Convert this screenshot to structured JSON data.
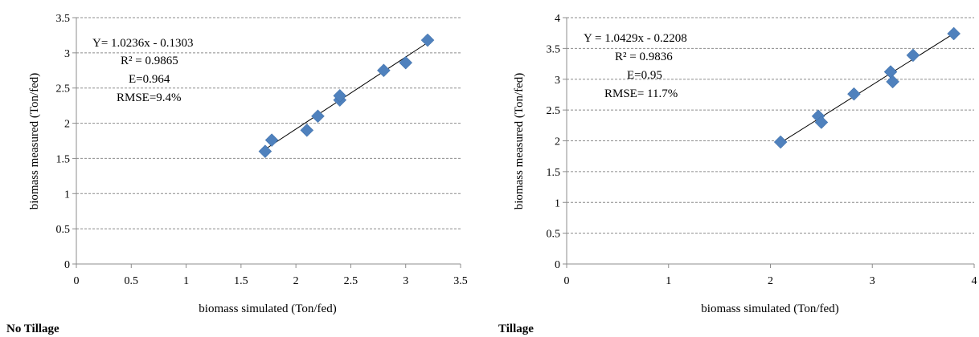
{
  "chart_data": [
    {
      "type": "scatter",
      "xlabel": "biomass simulated (Ton/fed)",
      "ylabel": "biomass measured (Ton/fed)",
      "xlim": [
        0,
        3.5
      ],
      "ylim": [
        0,
        3.5
      ],
      "xticks": [
        "0",
        "0.5",
        "1",
        "1.5",
        "2",
        "2.5",
        "3",
        "3.5"
      ],
      "yticks": [
        "0",
        "0.5",
        "1",
        "1.5",
        "2",
        "2.5",
        "3",
        "3.5"
      ],
      "grid": "horizontal dashed",
      "marker_color": "#4f81bd",
      "trendline": {
        "slope": 1.0236,
        "intercept": -0.1303
      },
      "annotations": [
        "Y= 1.0236x - 0.1303",
        "R² = 0.9865",
        "E=0.964",
        "RMSE=9.4%"
      ],
      "panel_label": "No Tillage",
      "points": [
        {
          "x": 1.72,
          "y": 1.6
        },
        {
          "x": 1.78,
          "y": 1.76
        },
        {
          "x": 2.1,
          "y": 1.9
        },
        {
          "x": 2.2,
          "y": 2.1
        },
        {
          "x": 2.4,
          "y": 2.33
        },
        {
          "x": 2.4,
          "y": 2.39
        },
        {
          "x": 2.8,
          "y": 2.75
        },
        {
          "x": 3.0,
          "y": 2.86
        },
        {
          "x": 3.2,
          "y": 3.18
        }
      ]
    },
    {
      "type": "scatter",
      "xlabel": "biomass simulated (Ton/fed)",
      "ylabel": "biomass measured (Ton/fed)",
      "xlim": [
        0,
        4
      ],
      "ylim": [
        0,
        4
      ],
      "xticks": [
        "0",
        "1",
        "2",
        "3",
        "4"
      ],
      "yticks": [
        "0",
        "0.5",
        "1",
        "1.5",
        "2",
        "2.5",
        "3",
        "3.5",
        "4"
      ],
      "grid": "horizontal dashed",
      "marker_color": "#4f81bd",
      "trendline": {
        "slope": 1.0429,
        "intercept": -0.2208
      },
      "annotations": [
        "Y = 1.0429x - 0.2208",
        "R² = 0.9836",
        "E=0.95",
        "RMSE= 11.7%"
      ],
      "panel_label": "Tillage",
      "points": [
        {
          "x": 2.1,
          "y": 1.98
        },
        {
          "x": 2.47,
          "y": 2.4
        },
        {
          "x": 2.5,
          "y": 2.3
        },
        {
          "x": 2.82,
          "y": 2.76
        },
        {
          "x": 3.18,
          "y": 3.12
        },
        {
          "x": 3.2,
          "y": 2.96
        },
        {
          "x": 3.4,
          "y": 3.39
        },
        {
          "x": 3.8,
          "y": 3.74
        }
      ]
    }
  ]
}
